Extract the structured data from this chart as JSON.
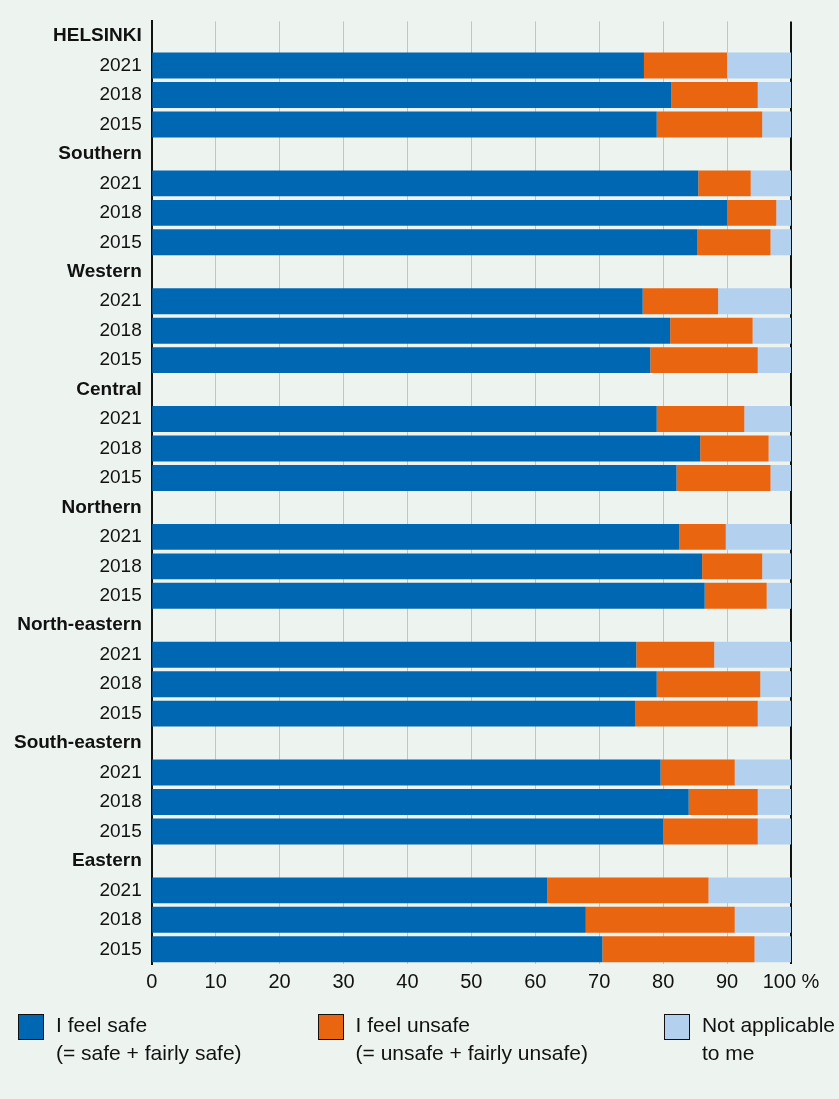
{
  "chart_data": {
    "type": "bar",
    "orientation": "horizontal",
    "stacked": true,
    "categories": [
      "HELSINKI",
      "2021",
      "2018",
      "2015",
      "Southern",
      "2021",
      "2018",
      "2015",
      "Western",
      "2021",
      "2018",
      "2015",
      "Central",
      "2021",
      "2018",
      "2015",
      "Northern",
      "2021",
      "2018",
      "2015",
      "North-eastern",
      "2021",
      "2018",
      "2015",
      "South-eastern",
      "2021",
      "2018",
      "2015",
      "Eastern",
      "2021",
      "2018",
      "2015"
    ],
    "series": [
      {
        "name": "I feel safe\n(= safe + fairly safe)",
        "color": "#0068b3",
        "values": [
          null,
          77.0,
          81.3,
          79.0,
          null,
          85.5,
          90.0,
          85.3,
          null,
          76.8,
          81.1,
          78.0,
          null,
          79.0,
          85.8,
          82.1,
          null,
          82.5,
          86.1,
          86.5,
          null,
          75.8,
          79.0,
          75.6,
          null,
          79.6,
          84.0,
          80.0,
          null,
          61.9,
          67.9,
          70.5
        ]
      },
      {
        "name": "I feel unsafe\n(= unsafe + fairly unsafe)",
        "color": "#ea6510",
        "values": [
          null,
          13.0,
          13.5,
          16.5,
          null,
          8.2,
          7.7,
          11.5,
          null,
          11.8,
          12.9,
          16.8,
          null,
          13.7,
          10.7,
          14.7,
          null,
          7.3,
          9.4,
          9.7,
          null,
          12.2,
          16.2,
          19.2,
          null,
          11.6,
          10.8,
          14.8,
          null,
          25.2,
          23.3,
          23.8
        ]
      },
      {
        "name": "Not applicable\nto me",
        "color": "#b3d1ee",
        "values": [
          null,
          10.0,
          5.2,
          4.5,
          null,
          6.3,
          2.3,
          3.2,
          null,
          11.4,
          6.0,
          5.2,
          null,
          7.3,
          3.5,
          3.2,
          null,
          10.2,
          4.5,
          3.8,
          null,
          12.0,
          4.8,
          5.2,
          null,
          8.8,
          5.2,
          5.2,
          null,
          12.9,
          8.8,
          5.7
        ]
      }
    ],
    "xlim": [
      0,
      100
    ],
    "xticks": [
      0,
      10,
      20,
      30,
      40,
      50,
      60,
      70,
      80,
      90,
      {
        "value": 100,
        "label": "100 %"
      }
    ],
    "grid": "x",
    "legend": "bottom"
  }
}
